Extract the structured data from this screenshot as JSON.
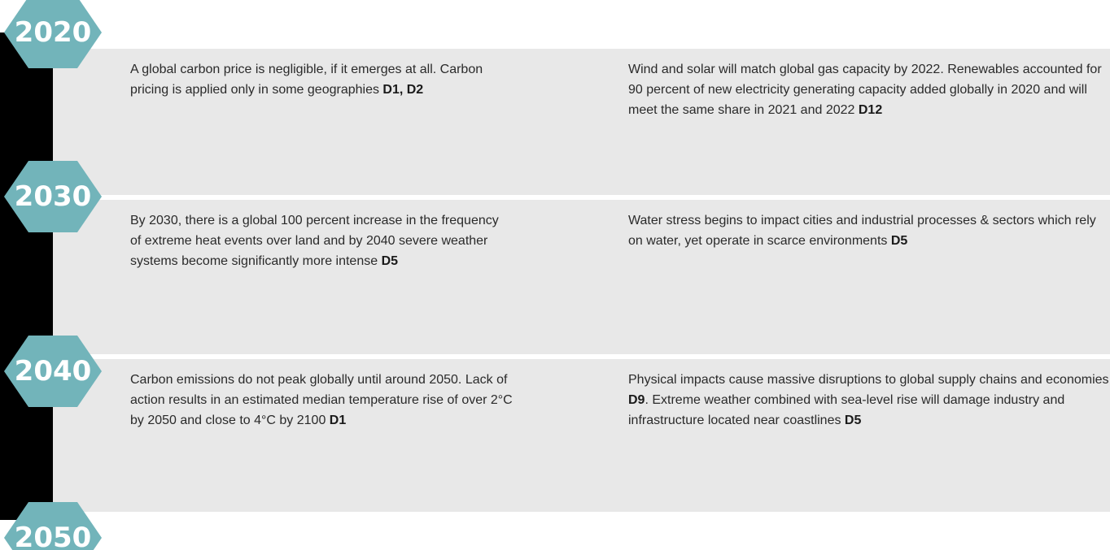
{
  "years": [
    "2020",
    "2030",
    "2040",
    "2050"
  ],
  "rows": [
    {
      "left": [
        {
          "text": "A global carbon price is negligible, if it emerges at all. Carbon pricing is applied only in some geographies ",
          "bold": false
        },
        {
          "text": "D1, D2",
          "bold": true
        }
      ],
      "right": [
        {
          "text": "Wind and solar will match global gas capacity by 2022. Renewables accounted for 90 percent of new electricity generating capacity added globally in 2020 and will meet the same share in 2021 and 2022 ",
          "bold": false
        },
        {
          "text": "D12",
          "bold": true
        }
      ]
    },
    {
      "left": [
        {
          "text": "By 2030, there is a global 100 percent increase in the frequency of extreme heat events over land and by 2040 severe weather systems become significantly more intense ",
          "bold": false
        },
        {
          "text": "D5",
          "bold": true
        }
      ],
      "right": [
        {
          "text": "Water stress begins to impact cities and industrial processes & sectors which rely on water, yet operate in scarce environments ",
          "bold": false
        },
        {
          "text": "D5",
          "bold": true
        }
      ]
    },
    {
      "left": [
        {
          "text": "Carbon emissions do not peak globally until around 2050. Lack of action results in an estimated median temperature rise of over 2°C by 2050 and close to 4°C by 2100 ",
          "bold": false
        },
        {
          "text": "D1",
          "bold": true
        }
      ],
      "right": [
        {
          "text": "Physical impacts cause massive disruptions to global supply chains and economies ",
          "bold": false
        },
        {
          "text": "D9",
          "bold": true
        },
        {
          "text": ". Extreme weather combined with sea-level rise will damage industry and infrastructure located near coastlines ",
          "bold": false
        },
        {
          "text": "D5",
          "bold": true
        }
      ]
    }
  ]
}
